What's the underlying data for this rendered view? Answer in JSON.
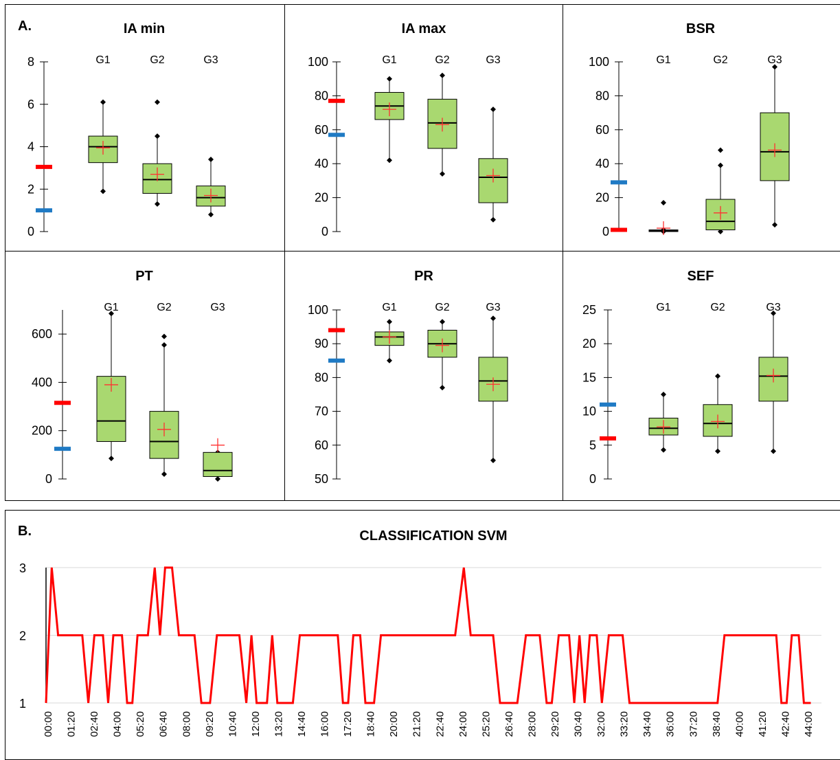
{
  "panel_labels": {
    "a": "A.",
    "b": "B."
  },
  "group_labels": [
    "G1",
    "G2",
    "G3"
  ],
  "colors": {
    "box_fill": "#a9d870",
    "box_stroke": "#000000",
    "mean_marker": "#ff3030",
    "red_ref": "#ff0000",
    "blue_ref": "#1f7ac4",
    "svm_line": "#ff0000",
    "grid": "#d9d9d9",
    "border": "#000000"
  },
  "chart_data": [
    {
      "type": "box",
      "title": "IA min",
      "ylim": [
        0,
        8
      ],
      "yticks": [
        0,
        2,
        4,
        6,
        8
      ],
      "ref_lines": {
        "red": 3.05,
        "blue": 1.0
      },
      "groups": [
        {
          "label": "G1",
          "whisker_low": 1.9,
          "q1": 3.25,
          "median": 4.0,
          "q3": 4.5,
          "whisker_high": 6.1,
          "mean": 3.95,
          "outliers": []
        },
        {
          "label": "G2",
          "whisker_low": 1.3,
          "q1": 1.8,
          "median": 2.45,
          "q3": 3.2,
          "whisker_high": 4.5,
          "mean": 2.7,
          "outliers": [
            6.1
          ]
        },
        {
          "label": "G3",
          "whisker_low": 0.8,
          "q1": 1.2,
          "median": 1.6,
          "q3": 2.15,
          "whisker_high": 3.4,
          "mean": 1.7,
          "outliers": []
        }
      ]
    },
    {
      "type": "box",
      "title": "IA max",
      "ylim": [
        0,
        100
      ],
      "yticks": [
        0,
        20,
        40,
        60,
        80,
        100
      ],
      "ref_lines": {
        "red": 77,
        "blue": 57
      },
      "groups": [
        {
          "label": "G1",
          "whisker_low": 42,
          "q1": 66,
          "median": 74,
          "q3": 82,
          "whisker_high": 90,
          "mean": 72,
          "outliers": []
        },
        {
          "label": "G2",
          "whisker_low": 34,
          "q1": 49,
          "median": 64,
          "q3": 78,
          "whisker_high": 92,
          "mean": 63,
          "outliers": []
        },
        {
          "label": "G3",
          "whisker_low": 7,
          "q1": 17,
          "median": 32,
          "q3": 43,
          "whisker_high": 72,
          "mean": 33,
          "outliers": []
        }
      ]
    },
    {
      "type": "box",
      "title": "BSR",
      "ylim": [
        0,
        100
      ],
      "yticks": [
        0,
        20,
        40,
        60,
        80,
        100
      ],
      "ref_lines": {
        "red": 1,
        "blue": 29
      },
      "groups": [
        {
          "label": "G1",
          "whisker_low": 0,
          "q1": 0,
          "median": 0.5,
          "q3": 1,
          "whisker_high": 1,
          "mean": 2,
          "outliers": [
            17
          ]
        },
        {
          "label": "G2",
          "whisker_low": 0,
          "q1": 1,
          "median": 6,
          "q3": 19,
          "whisker_high": 39,
          "mean": 11,
          "outliers": [
            48
          ]
        },
        {
          "label": "G3",
          "whisker_low": 4,
          "q1": 30,
          "median": 47,
          "q3": 70,
          "whisker_high": 97,
          "mean": 48,
          "outliers": []
        }
      ]
    },
    {
      "type": "box",
      "title": "PT",
      "ylim": [
        0,
        700
      ],
      "yticks": [
        0,
        200,
        400,
        600
      ],
      "ref_lines": {
        "red": 315,
        "blue": 125
      },
      "groups": [
        {
          "label": "G1",
          "whisker_low": 85,
          "q1": 155,
          "median": 240,
          "q3": 425,
          "whisker_high": 685,
          "mean": 390,
          "outliers": []
        },
        {
          "label": "G2",
          "whisker_low": 20,
          "q1": 85,
          "median": 155,
          "q3": 280,
          "whisker_high": 555,
          "mean": 205,
          "outliers": [
            590
          ]
        },
        {
          "label": "G3",
          "whisker_low": 0,
          "q1": 10,
          "median": 35,
          "q3": 110,
          "whisker_high": 110,
          "mean": 140,
          "outliers": []
        }
      ]
    },
    {
      "type": "box",
      "title": "PR",
      "ylim": [
        50,
        100
      ],
      "yticks": [
        50,
        60,
        70,
        80,
        90,
        100
      ],
      "ref_lines": {
        "red": 94,
        "blue": 85
      },
      "groups": [
        {
          "label": "G1",
          "whisker_low": 85,
          "q1": 89.5,
          "median": 92,
          "q3": 93.5,
          "whisker_high": 96.5,
          "mean": 92,
          "outliers": []
        },
        {
          "label": "G2",
          "whisker_low": 77,
          "q1": 86,
          "median": 90,
          "q3": 94,
          "whisker_high": 96.5,
          "mean": 89.5,
          "outliers": []
        },
        {
          "label": "G3",
          "whisker_low": 55.5,
          "q1": 73,
          "median": 79,
          "q3": 86,
          "whisker_high": 97.5,
          "mean": 78,
          "outliers": []
        }
      ]
    },
    {
      "type": "box",
      "title": "SEF",
      "ylim": [
        0,
        25
      ],
      "yticks": [
        0,
        5,
        10,
        15,
        20,
        25
      ],
      "ref_lines": {
        "red": 6,
        "blue": 11
      },
      "groups": [
        {
          "label": "G1",
          "whisker_low": 4.3,
          "q1": 6.5,
          "median": 7.5,
          "q3": 9,
          "whisker_high": 12.5,
          "mean": 7.7,
          "outliers": []
        },
        {
          "label": "G2",
          "whisker_low": 4.1,
          "q1": 6.3,
          "median": 8.2,
          "q3": 11,
          "whisker_high": 15.2,
          "mean": 8.5,
          "outliers": []
        },
        {
          "label": "G3",
          "whisker_low": 4.1,
          "q1": 11.5,
          "median": 15.2,
          "q3": 18,
          "whisker_high": 24.5,
          "mean": 15.3,
          "outliers": []
        }
      ]
    },
    {
      "type": "line",
      "title": "CLASSIFICATION SVM",
      "ylim": [
        1,
        3
      ],
      "yticks": [
        1,
        2,
        3
      ],
      "xlim_minutes": [
        0,
        44.6
      ],
      "xticks": [
        "00:00",
        "01:20",
        "02:40",
        "04:00",
        "05:20",
        "06:40",
        "08:00",
        "09:20",
        "10:40",
        "12:00",
        "13:20",
        "14:40",
        "16:00",
        "17:20",
        "18:40",
        "20:00",
        "21:20",
        "22:40",
        "24:00",
        "25:20",
        "26:40",
        "28:00",
        "29:20",
        "30:40",
        "32:00",
        "33:20",
        "34:40",
        "36:00",
        "37:20",
        "38:40",
        "40:00",
        "41:20",
        "42:40",
        "44:00"
      ],
      "points": [
        [
          0,
          1
        ],
        [
          0.33,
          3
        ],
        [
          0.7,
          2
        ],
        [
          2.1,
          2
        ],
        [
          2.45,
          1
        ],
        [
          2.8,
          2
        ],
        [
          3.3,
          2
        ],
        [
          3.6,
          1
        ],
        [
          3.9,
          2
        ],
        [
          4.4,
          2
        ],
        [
          4.7,
          1
        ],
        [
          5.0,
          1
        ],
        [
          5.3,
          2
        ],
        [
          5.9,
          2
        ],
        [
          6.3,
          3
        ],
        [
          6.6,
          2
        ],
        [
          6.9,
          3
        ],
        [
          7.3,
          3
        ],
        [
          7.7,
          2
        ],
        [
          8.6,
          2
        ],
        [
          9.0,
          1
        ],
        [
          9.5,
          1
        ],
        [
          9.9,
          2
        ],
        [
          11.2,
          2
        ],
        [
          11.6,
          1
        ],
        [
          11.9,
          2
        ],
        [
          12.2,
          1
        ],
        [
          12.8,
          1
        ],
        [
          13.1,
          2
        ],
        [
          13.4,
          1
        ],
        [
          14.3,
          1
        ],
        [
          14.7,
          2
        ],
        [
          16.9,
          2
        ],
        [
          17.2,
          1
        ],
        [
          17.5,
          1
        ],
        [
          17.8,
          2
        ],
        [
          18.2,
          2
        ],
        [
          18.5,
          1
        ],
        [
          19.0,
          1
        ],
        [
          19.4,
          2
        ],
        [
          23.7,
          2
        ],
        [
          24.2,
          3
        ],
        [
          24.6,
          2
        ],
        [
          25.9,
          2
        ],
        [
          26.3,
          1
        ],
        [
          27.3,
          1
        ],
        [
          27.8,
          2
        ],
        [
          28.6,
          2
        ],
        [
          29.0,
          1
        ],
        [
          29.3,
          1
        ],
        [
          29.7,
          2
        ],
        [
          30.3,
          2
        ],
        [
          30.6,
          1
        ],
        [
          30.9,
          2
        ],
        [
          31.2,
          1
        ],
        [
          31.5,
          2
        ],
        [
          31.9,
          2
        ],
        [
          32.2,
          1
        ],
        [
          32.6,
          2
        ],
        [
          33.4,
          2
        ],
        [
          33.8,
          1
        ],
        [
          38.9,
          1
        ],
        [
          39.3,
          2
        ],
        [
          42.3,
          2
        ],
        [
          42.6,
          1
        ],
        [
          42.9,
          1
        ],
        [
          43.2,
          2
        ],
        [
          43.6,
          2
        ],
        [
          43.9,
          1
        ],
        [
          44.3,
          1
        ]
      ]
    }
  ]
}
